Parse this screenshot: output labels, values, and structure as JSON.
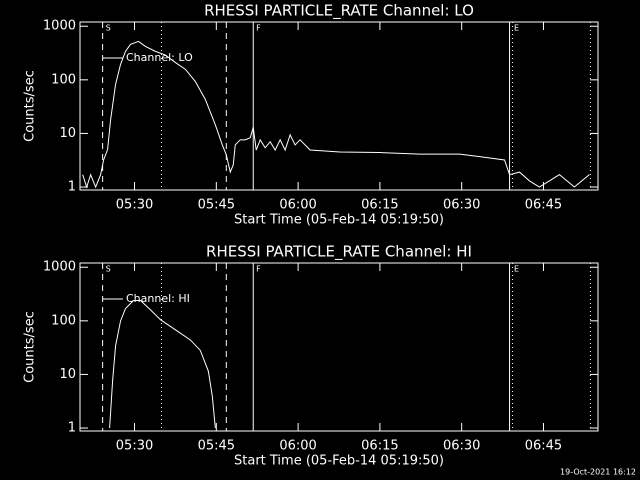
{
  "chart_data": [
    {
      "type": "line",
      "title": "RHESSI PARTICLE_RATE Channel: LO",
      "xlabel": "Start Time (05-Feb-14 05:19:50)",
      "ylabel": "Counts/sec",
      "ylog": true,
      "ylim": [
        0.88,
        1200
      ],
      "yticks": [
        1,
        10,
        100,
        1000
      ],
      "xlim": [
        320,
        415
      ],
      "xticks": [
        {
          "value": 330,
          "label": "05:30"
        },
        {
          "value": 345,
          "label": "05:45"
        },
        {
          "value": 360,
          "label": "06:00"
        },
        {
          "value": 375,
          "label": "06:15"
        },
        {
          "value": 390,
          "label": "06:30"
        },
        {
          "value": 405,
          "label": "06:45"
        }
      ],
      "legend": "upper left",
      "series": [
        {
          "name": "Channel: LO",
          "color": "#ffffff",
          "x": [
            320.49,
            321.22,
            321.95,
            322.87,
            323.78,
            324.33,
            325.06,
            325.61,
            326.52,
            327.44,
            328.35,
            329.27,
            330.73,
            332.01,
            333.84,
            335.67,
            337.5,
            339.33,
            341.16,
            342.99,
            344.82,
            346.1,
            346.83,
            347.56,
            348.11,
            348.47,
            349.39,
            350.3,
            351.22,
            351.77,
            352.32,
            353.05,
            353.96,
            354.88,
            355.79,
            356.71,
            357.62,
            358.54,
            359.45,
            360.36,
            362.19,
            367.68,
            374.99,
            382.31,
            389.63,
            393.29,
            397.86,
            398.78,
            400.61,
            402.44,
            404.26,
            407.92,
            410.67,
            413.41
          ],
          "values": [
            1.7,
            1,
            1.7,
            1,
            1.7,
            3.2,
            5,
            18,
            82,
            195,
            340,
            460,
            520,
            420,
            340,
            290,
            210,
            157,
            93,
            43,
            14.5,
            6.1,
            4,
            1.9,
            2.6,
            6.1,
            7.6,
            7.6,
            8.3,
            13,
            4.9,
            7.6,
            5.4,
            7,
            4.9,
            7.6,
            4.9,
            9.4,
            6.1,
            7.6,
            4.9,
            4.5,
            4.4,
            4.1,
            4.1,
            3.7,
            3.2,
            1.7,
            1.9,
            1.3,
            1,
            1.7,
            1,
            1.7
          ]
        }
      ],
      "vlines": [
        {
          "x": 324.15,
          "style": "dashed"
        },
        {
          "x": 334.94,
          "style": "dotted"
        },
        {
          "x": 346.83,
          "style": "dashed"
        },
        {
          "x": 351.77,
          "style": "solid"
        },
        {
          "x": 398.78,
          "style": "solid"
        },
        {
          "x": 399.33,
          "style": "dotted"
        },
        {
          "x": 413.6,
          "style": "dotted"
        }
      ],
      "markers": [
        {
          "x": 324.7,
          "label": "S"
        },
        {
          "x": 352.3,
          "label": "F"
        },
        {
          "x": 399.6,
          "label": "E"
        }
      ]
    },
    {
      "type": "line",
      "title": "RHESSI PARTICLE_RATE Channel: HI",
      "xlabel": "Start Time (05-Feb-14 05:19:50)",
      "ylabel": "Counts/sec",
      "ylog": true,
      "ylim": [
        0.88,
        1200
      ],
      "yticks": [
        1,
        10,
        100,
        1000
      ],
      "xlim": [
        320,
        415
      ],
      "xticks": [
        {
          "value": 330,
          "label": "05:30"
        },
        {
          "value": 345,
          "label": "05:45"
        },
        {
          "value": 360,
          "label": "06:00"
        },
        {
          "value": 375,
          "label": "06:15"
        },
        {
          "value": 390,
          "label": "06:30"
        },
        {
          "value": 405,
          "label": "06:45"
        }
      ],
      "legend": "upper left",
      "series": [
        {
          "name": "Channel: HI",
          "color": "#ffffff",
          "x": [
            325.43,
            325.98,
            326.52,
            327.44,
            328.35,
            329.82,
            331.1,
            332.93,
            334.76,
            337.5,
            340.24,
            342.07,
            343.54,
            344.27,
            344.82
          ],
          "values": [
            1,
            7.6,
            34,
            100,
            170,
            240,
            240,
            160,
            105,
            68,
            44,
            28,
            11.5,
            3.9,
            1
          ]
        }
      ],
      "vlines": [
        {
          "x": 324.15,
          "style": "dashed"
        },
        {
          "x": 334.94,
          "style": "dotted"
        },
        {
          "x": 346.83,
          "style": "dashed"
        },
        {
          "x": 351.77,
          "style": "solid"
        },
        {
          "x": 398.78,
          "style": "solid"
        },
        {
          "x": 399.33,
          "style": "dotted"
        },
        {
          "x": 413.6,
          "style": "dotted"
        }
      ],
      "markers": [
        {
          "x": 324.7,
          "label": "S"
        },
        {
          "x": 352.3,
          "label": "F"
        },
        {
          "x": 399.6,
          "label": "E"
        }
      ]
    }
  ],
  "footer": "19-Oct-2021 16:12"
}
